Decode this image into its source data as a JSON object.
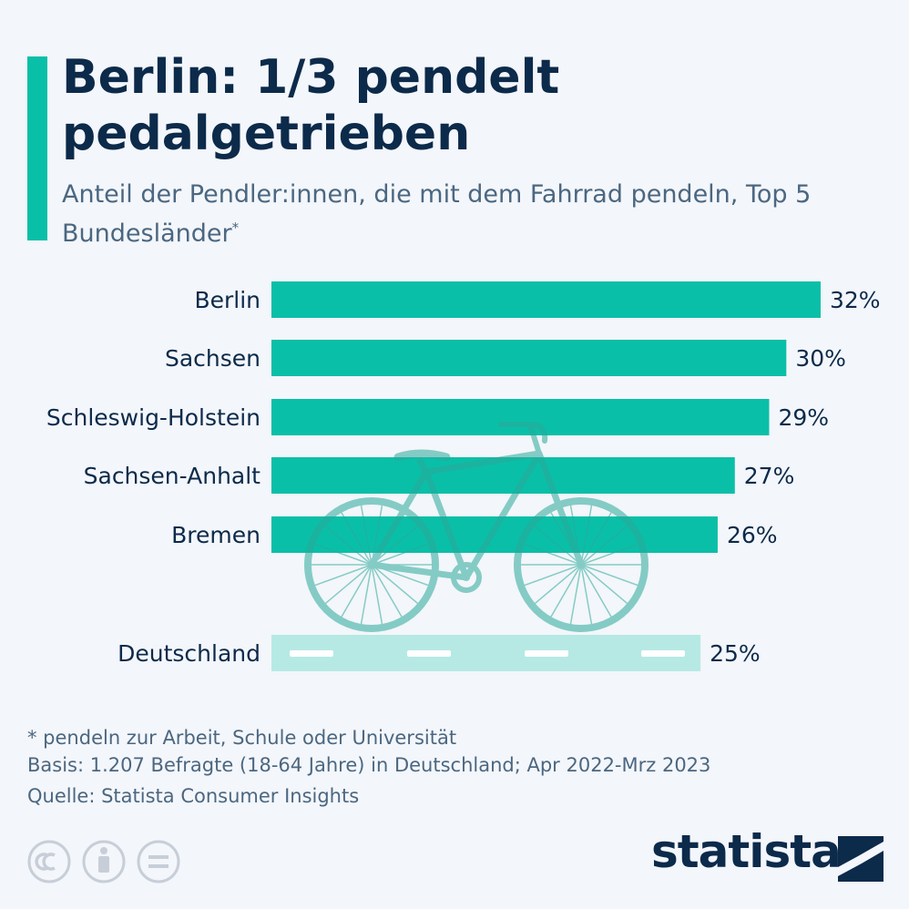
{
  "title": "Berlin: 1/3 pendelt pedalgetrieben",
  "subtitle": "Anteil der Pendler:innen, die mit dem Fahrrad pendeln, Top 5 Bundesländer",
  "subtitle_mark": "*",
  "colors": {
    "bar": "#0abfa8",
    "bar_total": "#b6e9e4",
    "accent": "#0abfa8",
    "text": "#0c2a4a",
    "bike": "#2ba99a"
  },
  "chart_data": {
    "type": "bar",
    "orientation": "horizontal",
    "categories": [
      "Berlin",
      "Sachsen",
      "Schleswig-Holstein",
      "Sachsen-Anhalt",
      "Bremen",
      "Deutschland"
    ],
    "values": [
      32,
      30,
      29,
      27,
      26,
      25
    ],
    "value_labels": [
      "32%",
      "30%",
      "29%",
      "27%",
      "26%",
      "25%"
    ],
    "unit": "%",
    "highlight": {
      "category": "Deutschland",
      "color": "#b6e9e4"
    },
    "xlim": [
      0,
      32
    ],
    "grid": false,
    "legend": "none"
  },
  "footnotes": {
    "note": "* pendeln zur Arbeit, Schule oder Universität",
    "basis": "Basis: 1.207 Befragte (18-64 Jahre) in Deutschland; Apr 2022-Mrz 2023",
    "source": "Quelle: Statista Consumer Insights"
  },
  "license_icons": [
    "cc-icon",
    "attribution-icon",
    "no-derivatives-icon"
  ],
  "brand": "statista"
}
